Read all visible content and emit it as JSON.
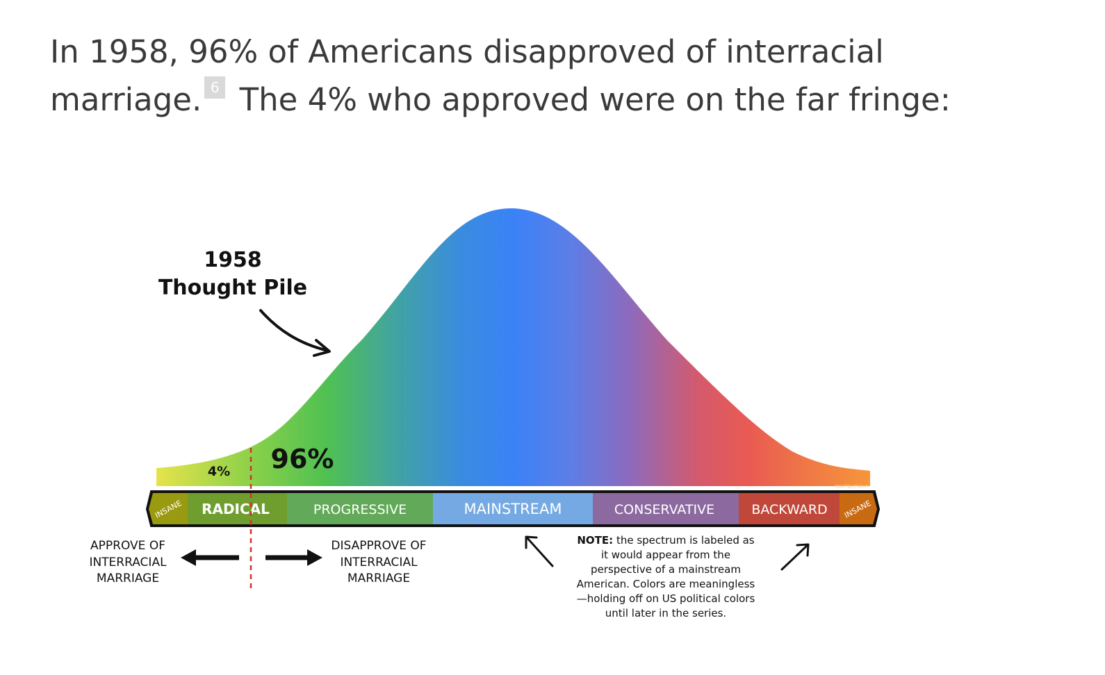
{
  "intro": {
    "line1": "In 1958, 96% of Americans disapproved of interracial",
    "line2_pre": "marriage.",
    "footnote": "6",
    "line2_post": "The 4% who approved were on the far fringe:"
  },
  "figure": {
    "title_line1": "1958",
    "title_line2": "Thought Pile",
    "pct_left": "4%",
    "pct_right": "96%",
    "credit": "WAITBUTWHY",
    "segments": [
      {
        "label": "INSANE",
        "color": "#9a9a10"
      },
      {
        "label": "RADICAL",
        "color": "#6f9e2f"
      },
      {
        "label": "PROGRESSIVE",
        "color": "#63a95a"
      },
      {
        "label": "MAINSTREAM",
        "color": "#75a9e3"
      },
      {
        "label": "CONSERVATIVE",
        "color": "#8c6aa0"
      },
      {
        "label": "BACKWARD",
        "color": "#c0483a"
      },
      {
        "label": "INSANE",
        "color": "#c86a12"
      }
    ],
    "left_label": [
      "APPROVE OF",
      "INTERRACIAL",
      "MARRIAGE"
    ],
    "right_label": [
      "DISAPPROVE OF",
      "INTERRACIAL",
      "MARRIAGE"
    ],
    "note_label": "NOTE:",
    "note_lines": [
      "the spectrum is labeled as",
      "it would appear from the",
      "perspective of a mainstream",
      "American. Colors are meaningless",
      "—holding off on US political colors",
      "until later in the series."
    ]
  }
}
